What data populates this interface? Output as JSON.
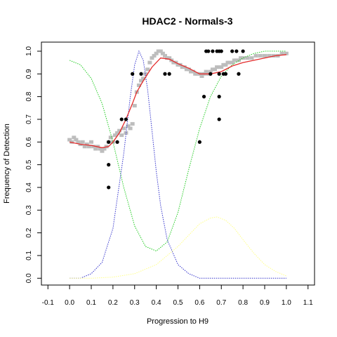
{
  "chart_data": {
    "type": "scatter",
    "title": "HDAC2 - Normals-3",
    "xlabel": "Progression to H9",
    "ylabel": "Frequency of Detection",
    "xlim": [
      -0.13,
      1.13
    ],
    "ylim": [
      -0.03,
      1.04
    ],
    "x_ticks": [
      "-0.1",
      "0.0",
      "0.1",
      "0.2",
      "0.3",
      "0.4",
      "0.5",
      "0.6",
      "0.7",
      "0.8",
      "0.9",
      "1.0",
      "1.1"
    ],
    "y_ticks": [
      "0.0",
      "0.1",
      "0.2",
      "0.3",
      "0.4",
      "0.5",
      "0.6",
      "0.7",
      "0.8",
      "0.9",
      "1.0"
    ],
    "grid": false,
    "legend": "none",
    "colors": {
      "gray_points": "#bdbdbd",
      "black_points": "#000000",
      "red_fit": "#e32b2b",
      "green_curve": "#22cc22",
      "blue_curve": "#3333cc",
      "yellow_curve": "#ffff88"
    },
    "series": [
      {
        "type": "scatter",
        "color": "gray",
        "points": [
          [
            0.0,
            0.61
          ],
          [
            0.01,
            0.6
          ],
          [
            0.02,
            0.62
          ],
          [
            0.03,
            0.61
          ],
          [
            0.04,
            0.6
          ],
          [
            0.05,
            0.59
          ],
          [
            0.06,
            0.6
          ],
          [
            0.07,
            0.58
          ],
          [
            0.08,
            0.59
          ],
          [
            0.09,
            0.58
          ],
          [
            0.1,
            0.6
          ],
          [
            0.11,
            0.58
          ],
          [
            0.12,
            0.57
          ],
          [
            0.13,
            0.58
          ],
          [
            0.14,
            0.57
          ],
          [
            0.15,
            0.56
          ],
          [
            0.16,
            0.57
          ],
          [
            0.17,
            0.58
          ],
          [
            0.18,
            0.6
          ],
          [
            0.19,
            0.62
          ],
          [
            0.2,
            0.6
          ],
          [
            0.21,
            0.63
          ],
          [
            0.22,
            0.64
          ],
          [
            0.23,
            0.65
          ],
          [
            0.24,
            0.63
          ],
          [
            0.25,
            0.66
          ],
          [
            0.26,
            0.64
          ],
          [
            0.27,
            0.67
          ],
          [
            0.28,
            0.66
          ],
          [
            0.29,
            0.68
          ],
          [
            0.3,
            0.76
          ],
          [
            0.31,
            0.82
          ],
          [
            0.32,
            0.85
          ],
          [
            0.33,
            0.87
          ],
          [
            0.34,
            0.88
          ],
          [
            0.35,
            0.9
          ],
          [
            0.36,
            0.92
          ],
          [
            0.37,
            0.95
          ],
          [
            0.38,
            0.97
          ],
          [
            0.39,
            0.98
          ],
          [
            0.4,
            0.99
          ],
          [
            0.41,
            1.0
          ],
          [
            0.42,
            1.0
          ],
          [
            0.43,
            0.99
          ],
          [
            0.44,
            0.98
          ],
          [
            0.45,
            0.97
          ],
          [
            0.46,
            0.97
          ],
          [
            0.47,
            0.96
          ],
          [
            0.48,
            0.95
          ],
          [
            0.49,
            0.95
          ],
          [
            0.5,
            0.94
          ],
          [
            0.51,
            0.94
          ],
          [
            0.52,
            0.93
          ],
          [
            0.53,
            0.93
          ],
          [
            0.54,
            0.92
          ],
          [
            0.55,
            0.92
          ],
          [
            0.56,
            0.91
          ],
          [
            0.57,
            0.91
          ],
          [
            0.58,
            0.9
          ],
          [
            0.59,
            0.9
          ],
          [
            0.6,
            0.9
          ],
          [
            0.61,
            0.89
          ],
          [
            0.62,
            0.9
          ],
          [
            0.63,
            0.91
          ],
          [
            0.64,
            0.9
          ],
          [
            0.65,
            0.91
          ],
          [
            0.66,
            0.92
          ],
          [
            0.67,
            0.92
          ],
          [
            0.68,
            0.93
          ],
          [
            0.69,
            0.93
          ],
          [
            0.7,
            0.93
          ],
          [
            0.71,
            0.94
          ],
          [
            0.72,
            0.94
          ],
          [
            0.73,
            0.95
          ],
          [
            0.74,
            0.95
          ],
          [
            0.75,
            0.95
          ],
          [
            0.76,
            0.96
          ],
          [
            0.77,
            0.96
          ],
          [
            0.78,
            0.96
          ],
          [
            0.79,
            0.97
          ],
          [
            0.8,
            0.97
          ],
          [
            0.82,
            0.97
          ],
          [
            0.84,
            0.97
          ],
          [
            0.86,
            0.98
          ],
          [
            0.88,
            0.98
          ],
          [
            0.9,
            0.98
          ],
          [
            0.92,
            0.98
          ],
          [
            0.94,
            0.98
          ],
          [
            0.96,
            0.98
          ],
          [
            0.98,
            0.99
          ],
          [
            1.0,
            0.99
          ]
        ]
      },
      {
        "type": "scatter",
        "color": "black",
        "points": [
          [
            0.18,
            0.6
          ],
          [
            0.18,
            0.5
          ],
          [
            0.18,
            0.4
          ],
          [
            0.22,
            0.6
          ],
          [
            0.24,
            0.7
          ],
          [
            0.26,
            0.7
          ],
          [
            0.29,
            0.9
          ],
          [
            0.33,
            0.9
          ],
          [
            0.44,
            0.9
          ],
          [
            0.46,
            0.9
          ],
          [
            0.6,
            0.6
          ],
          [
            0.62,
            0.8
          ],
          [
            0.63,
            1.0
          ],
          [
            0.64,
            1.0
          ],
          [
            0.65,
            0.9
          ],
          [
            0.66,
            1.0
          ],
          [
            0.68,
            1.0
          ],
          [
            0.69,
            1.0
          ],
          [
            0.69,
            0.9
          ],
          [
            0.69,
            0.8
          ],
          [
            0.69,
            0.7
          ],
          [
            0.7,
            1.0
          ],
          [
            0.71,
            0.9
          ],
          [
            0.72,
            0.9
          ],
          [
            0.75,
            1.0
          ],
          [
            0.77,
            1.0
          ],
          [
            0.78,
            0.9
          ],
          [
            0.8,
            1.0
          ]
        ]
      },
      {
        "type": "line",
        "color": "red",
        "points": [
          [
            0.0,
            0.6
          ],
          [
            0.05,
            0.59
          ],
          [
            0.1,
            0.585
          ],
          [
            0.15,
            0.575
          ],
          [
            0.18,
            0.58
          ],
          [
            0.2,
            0.6
          ],
          [
            0.23,
            0.64
          ],
          [
            0.26,
            0.7
          ],
          [
            0.29,
            0.77
          ],
          [
            0.31,
            0.82
          ],
          [
            0.34,
            0.87
          ],
          [
            0.38,
            0.93
          ],
          [
            0.42,
            0.97
          ],
          [
            0.46,
            0.965
          ],
          [
            0.5,
            0.945
          ],
          [
            0.55,
            0.925
          ],
          [
            0.6,
            0.9
          ],
          [
            0.65,
            0.9
          ],
          [
            0.7,
            0.91
          ],
          [
            0.75,
            0.935
          ],
          [
            0.8,
            0.95
          ],
          [
            0.85,
            0.96
          ],
          [
            0.9,
            0.97
          ],
          [
            0.95,
            0.98
          ],
          [
            1.0,
            0.985
          ]
        ]
      },
      {
        "type": "line",
        "color": "green",
        "style": "dotted",
        "points": [
          [
            0.0,
            0.96
          ],
          [
            0.05,
            0.94
          ],
          [
            0.1,
            0.88
          ],
          [
            0.15,
            0.77
          ],
          [
            0.2,
            0.6
          ],
          [
            0.25,
            0.4
          ],
          [
            0.3,
            0.23
          ],
          [
            0.35,
            0.14
          ],
          [
            0.4,
            0.12
          ],
          [
            0.45,
            0.16
          ],
          [
            0.5,
            0.29
          ],
          [
            0.55,
            0.48
          ],
          [
            0.6,
            0.66
          ],
          [
            0.65,
            0.8
          ],
          [
            0.7,
            0.89
          ],
          [
            0.75,
            0.94
          ],
          [
            0.8,
            0.97
          ],
          [
            0.85,
            0.99
          ],
          [
            0.9,
            1.0
          ],
          [
            0.95,
            1.0
          ],
          [
            1.0,
            1.0
          ]
        ]
      },
      {
        "type": "line",
        "color": "blue",
        "style": "dotted",
        "points": [
          [
            0.0,
            0.0
          ],
          [
            0.05,
            0.0
          ],
          [
            0.1,
            0.02
          ],
          [
            0.15,
            0.07
          ],
          [
            0.2,
            0.22
          ],
          [
            0.25,
            0.55
          ],
          [
            0.28,
            0.8
          ],
          [
            0.3,
            0.94
          ],
          [
            0.32,
            1.0
          ],
          [
            0.34,
            0.96
          ],
          [
            0.36,
            0.83
          ],
          [
            0.38,
            0.65
          ],
          [
            0.4,
            0.47
          ],
          [
            0.42,
            0.32
          ],
          [
            0.45,
            0.17
          ],
          [
            0.5,
            0.06
          ],
          [
            0.55,
            0.02
          ],
          [
            0.6,
            0.0
          ],
          [
            0.7,
            0.0
          ],
          [
            0.8,
            0.0
          ],
          [
            0.9,
            0.0
          ],
          [
            1.0,
            0.0
          ]
        ]
      },
      {
        "type": "line",
        "color": "yellow",
        "style": "dotted",
        "points": [
          [
            0.0,
            0.0
          ],
          [
            0.1,
            0.0
          ],
          [
            0.2,
            0.005
          ],
          [
            0.3,
            0.02
          ],
          [
            0.4,
            0.06
          ],
          [
            0.45,
            0.1
          ],
          [
            0.5,
            0.14
          ],
          [
            0.55,
            0.19
          ],
          [
            0.6,
            0.24
          ],
          [
            0.65,
            0.265
          ],
          [
            0.68,
            0.27
          ],
          [
            0.72,
            0.255
          ],
          [
            0.76,
            0.22
          ],
          [
            0.8,
            0.17
          ],
          [
            0.85,
            0.11
          ],
          [
            0.9,
            0.06
          ],
          [
            0.95,
            0.03
          ],
          [
            1.0,
            0.01
          ]
        ]
      }
    ]
  }
}
